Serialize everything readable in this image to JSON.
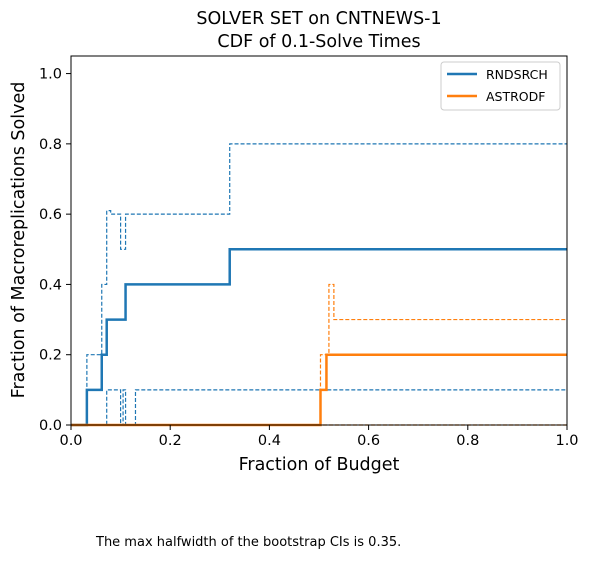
{
  "chart_data": {
    "type": "line",
    "title_lines": [
      "SOLVER SET on CNTNEWS-1",
      "CDF of 0.1-Solve Times"
    ],
    "xlabel": "Fraction of Budget",
    "ylabel": "Fraction of Macroreplications Solved",
    "xlim": [
      0.0,
      1.0
    ],
    "ylim": [
      0.0,
      1.05
    ],
    "xticks": [
      0.0,
      0.2,
      0.4,
      0.6,
      0.8,
      1.0
    ],
    "xtick_labels": [
      "0.0",
      "0.2",
      "0.4",
      "0.6",
      "0.8",
      "1.0"
    ],
    "yticks": [
      0.0,
      0.2,
      0.4,
      0.6,
      0.8,
      1.0
    ],
    "ytick_labels": [
      "0.0",
      "0.2",
      "0.4",
      "0.6",
      "0.8",
      "1.0"
    ],
    "grid": false,
    "legend_position": "top-right",
    "step": true,
    "series": [
      {
        "name": "RNDSRCH",
        "color": "#1f77b4",
        "role": "estimate",
        "x": [
          0.0,
          0.032,
          0.062,
          0.072,
          0.11,
          0.32,
          1.0
        ],
        "y": [
          0.0,
          0.1,
          0.2,
          0.3,
          0.4,
          0.5,
          0.5
        ]
      },
      {
        "name": "RNDSRCH",
        "color": "#1f77b4",
        "role": "ci-upper",
        "x": [
          0.0,
          0.032,
          0.062,
          0.072,
          0.08,
          0.1,
          0.11,
          0.32,
          1.0
        ],
        "y": [
          0.0,
          0.2,
          0.4,
          0.61,
          0.6,
          0.5,
          0.6,
          0.8,
          0.8
        ]
      },
      {
        "name": "RNDSRCH",
        "color": "#1f77b4",
        "role": "ci-lower",
        "x": [
          0.0,
          0.072,
          0.1,
          0.105,
          0.11,
          0.13,
          0.32,
          1.0
        ],
        "y": [
          0.0,
          0.1,
          0.0,
          0.1,
          0.0,
          0.1,
          0.1,
          0.1
        ]
      },
      {
        "name": "ASTRODF",
        "color": "#ff7f0e",
        "role": "estimate",
        "x": [
          0.0,
          0.503,
          0.515,
          1.0
        ],
        "y": [
          0.0,
          0.1,
          0.2,
          0.2
        ]
      },
      {
        "name": "ASTRODF",
        "color": "#ff7f0e",
        "role": "ci-upper",
        "x": [
          0.0,
          0.503,
          0.515,
          0.52,
          0.53,
          1.0
        ],
        "y": [
          0.0,
          0.2,
          0.2,
          0.4,
          0.3,
          0.3
        ]
      },
      {
        "name": "ASTRODF",
        "color": "#ff7f0e",
        "role": "ci-lower",
        "x": [
          0.0,
          1.0
        ],
        "y": [
          0.0,
          0.0
        ]
      }
    ],
    "legend": [
      {
        "label": "RNDSRCH",
        "color": "#1f77b4"
      },
      {
        "label": "ASTRODF",
        "color": "#ff7f0e"
      }
    ],
    "annotation": "The max halfwidth of the bootstrap CIs is 0.35."
  }
}
